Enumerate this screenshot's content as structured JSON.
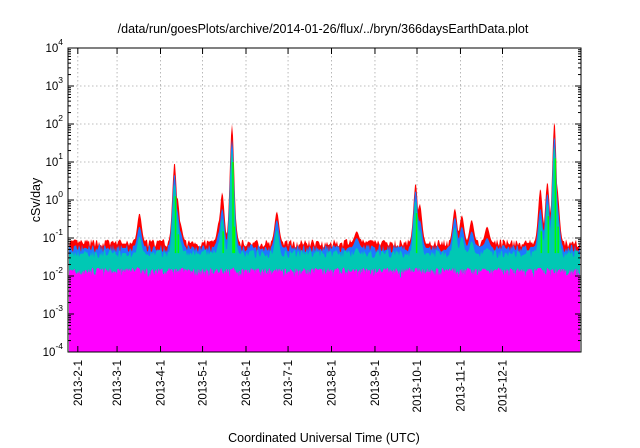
{
  "chart_data": {
    "type": "area",
    "title": "/data/run/goesPlots/archive/2014-01-26/flux/../bryn/366daysEarthData.plot",
    "xlabel": "Coordinated Universal Time (UTC)",
    "ylabel": "cSv/day",
    "yscale": "log",
    "ylim": [
      0.0001,
      10000
    ],
    "xlim": [
      "2013-01-25",
      "2014-01-26"
    ],
    "grid": true,
    "legend": "none",
    "y_ticks": [
      {
        "base": "10",
        "exp": "-4",
        "value": 0.0001
      },
      {
        "base": "10",
        "exp": "-3",
        "value": 0.001
      },
      {
        "base": "10",
        "exp": "-2",
        "value": 0.01
      },
      {
        "base": "10",
        "exp": "-1",
        "value": 0.1
      },
      {
        "base": "10",
        "exp": "0",
        "value": 1
      },
      {
        "base": "10",
        "exp": "1",
        "value": 10
      },
      {
        "base": "10",
        "exp": "2",
        "value": 100
      },
      {
        "base": "10",
        "exp": "3",
        "value": 1000
      },
      {
        "base": "10",
        "exp": "4",
        "value": 10000
      }
    ],
    "x_ticks": [
      "2013-2-1",
      "2013-3-1",
      "2013-4-1",
      "2013-5-1",
      "2013-6-1",
      "2013-7-1",
      "2013-8-1",
      "2013-9-1",
      "2013-10-1",
      "2013-11-1",
      "2013-12-1"
    ],
    "baseline": {
      "floor": 0.0025,
      "magenta": 0.013,
      "teal": 0.04,
      "blue": 0.055,
      "red": 0.075
    },
    "series_colors": {
      "red": "#ff0000",
      "blue": "#1e78ff",
      "teal": "#00c8b4",
      "green": "#00ff00",
      "magenta": "#ff00ff"
    },
    "spikes": [
      {
        "date": "2013-03-17",
        "red": 0.45,
        "blue": 0.2
      },
      {
        "date": "2013-04-11",
        "red": 10,
        "blue": 5
      },
      {
        "date": "2013-04-13",
        "red": 1.2,
        "blue": 0.5
      },
      {
        "date": "2013-04-15",
        "red": 0.25,
        "blue": 0.15
      },
      {
        "date": "2013-05-13",
        "red": 0.3,
        "blue": 0.15
      },
      {
        "date": "2013-05-15",
        "red": 1.6,
        "blue": 0.6
      },
      {
        "date": "2013-05-22",
        "red": 100,
        "blue": 40
      },
      {
        "date": "2013-05-23",
        "red": 1.5,
        "blue": 0.8
      },
      {
        "date": "2013-06-23",
        "red": 0.5,
        "blue": 0.3
      },
      {
        "date": "2013-08-19",
        "red": 0.15,
        "blue": 0.1
      },
      {
        "date": "2013-09-30",
        "red": 2.8,
        "blue": 1.8
      },
      {
        "date": "2013-10-03",
        "red": 0.8,
        "blue": 0.3
      },
      {
        "date": "2013-10-28",
        "red": 0.6,
        "blue": 0.35
      },
      {
        "date": "2013-11-02",
        "red": 0.4,
        "blue": 0.2
      },
      {
        "date": "2013-11-09",
        "red": 0.3,
        "blue": 0.15
      },
      {
        "date": "2013-11-20",
        "red": 0.2,
        "blue": 0.1
      },
      {
        "date": "2013-12-28",
        "red": 2,
        "blue": 0.6
      },
      {
        "date": "2014-01-02",
        "red": 3,
        "blue": 1.5
      },
      {
        "date": "2014-01-07",
        "red": 120,
        "blue": 50
      },
      {
        "date": "2014-01-09",
        "red": 2,
        "blue": 0.8
      }
    ],
    "gaps": [
      {
        "from": "2013-03-04",
        "to": "2013-03-08"
      },
      {
        "from": "2013-10-07",
        "to": "2013-10-10"
      }
    ]
  }
}
